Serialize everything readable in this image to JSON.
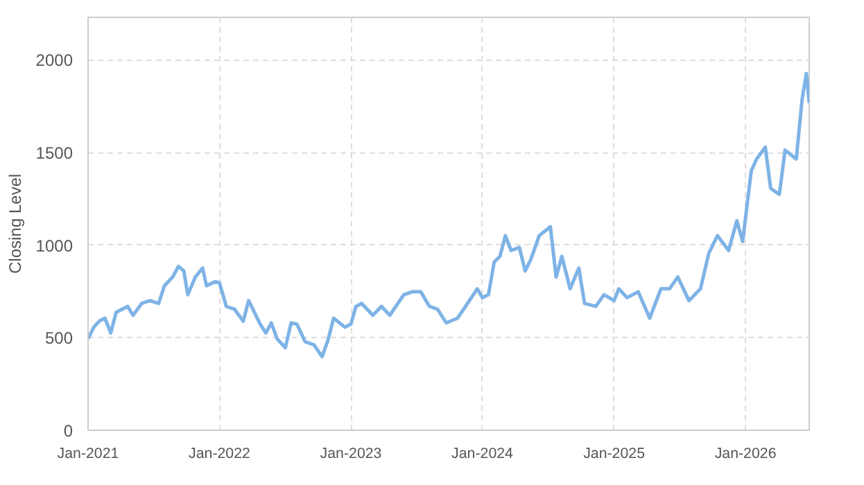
{
  "chart_data": {
    "type": "line",
    "ylabel": "Closing Level",
    "x": [
      "2021-01-01",
      "2021-01-17",
      "2021-02-01",
      "2021-02-17",
      "2021-03-05",
      "2021-03-20",
      "2021-04-21",
      "2021-05-06",
      "2021-05-30",
      "2021-06-22",
      "2021-07-16",
      "2021-08-01",
      "2021-08-24",
      "2021-09-09",
      "2021-09-24",
      "2021-10-05",
      "2021-10-26",
      "2021-11-15",
      "2021-11-26",
      "2021-12-20",
      "2022-01-01",
      "2022-01-20",
      "2022-02-12",
      "2022-03-08",
      "2022-03-23",
      "2022-04-08",
      "2022-04-24",
      "2022-05-10",
      "2022-05-25",
      "2022-06-10",
      "2022-07-03",
      "2022-07-19",
      "2022-08-04",
      "2022-08-27",
      "2022-09-20",
      "2022-10-13",
      "2022-10-29",
      "2022-11-14",
      "2022-12-15",
      "2023-01-01",
      "2023-01-15",
      "2023-01-31",
      "2023-03-03",
      "2023-03-27",
      "2023-04-19",
      "2023-05-28",
      "2023-06-21",
      "2023-07-14",
      "2023-08-07",
      "2023-08-30",
      "2023-09-23",
      "2023-10-24",
      "2023-11-24",
      "2023-12-18",
      "2024-01-01",
      "2024-01-18",
      "2024-02-03",
      "2024-02-19",
      "2024-03-05",
      "2024-03-21",
      "2024-04-13",
      "2024-04-29",
      "2024-05-15",
      "2024-06-07",
      "2024-07-08",
      "2024-07-24",
      "2024-08-09",
      "2024-09-01",
      "2024-09-25",
      "2024-10-11",
      "2024-11-11",
      "2024-12-04",
      "2025-01-01",
      "2025-01-14",
      "2025-02-06",
      "2025-03-09",
      "2025-04-10",
      "2025-05-11",
      "2025-06-04",
      "2025-06-27",
      "2025-07-28",
      "2025-08-29",
      "2025-09-21",
      "2025-10-15",
      "2025-11-15",
      "2025-12-08",
      "2025-12-24",
      "2026-01-17",
      "2026-02-01",
      "2026-02-25",
      "2026-03-12",
      "2026-04-05",
      "2026-04-21",
      "2026-05-22",
      "2026-06-07",
      "2026-06-19",
      "2026-06-27"
    ],
    "series": [
      {
        "color": "#7eb3e6",
        "values": [
          494,
          557,
          589,
          605,
          525,
          637,
          669,
          621,
          685,
          700,
          685,
          780,
          828,
          885,
          860,
          732,
          828,
          876,
          780,
          803,
          796,
          669,
          653,
          589,
          700,
          637,
          573,
          525,
          580,
          494,
          446,
          580,
          573,
          478,
          462,
          398,
          484,
          605,
          557,
          573,
          669,
          685,
          621,
          669,
          621,
          732,
          748,
          748,
          669,
          653,
          580,
          605,
          694,
          764,
          716,
          732,
          908,
          939,
          1051,
          971,
          987,
          860,
          924,
          1051,
          1099,
          828,
          939,
          764,
          876,
          685,
          669,
          732,
          700,
          764,
          716,
          748,
          605,
          764,
          764,
          828,
          700,
          764,
          955,
          1051,
          971,
          1131,
          1019,
          1401,
          1465,
          1529,
          1306,
          1274,
          1513,
          1465,
          1783,
          1927,
          1768
        ]
      }
    ],
    "xlim": [
      "2021-01-01",
      "2026-06-27"
    ],
    "xticks": [
      {
        "value": "2021-01-01",
        "label": "Jan-2021"
      },
      {
        "value": "2022-01-01",
        "label": "Jan-2022"
      },
      {
        "value": "2023-01-01",
        "label": "Jan-2023"
      },
      {
        "value": "2024-01-01",
        "label": "Jan-2024"
      },
      {
        "value": "2025-01-01",
        "label": "Jan-2025"
      },
      {
        "value": "2026-01-01",
        "label": "Jan-2026"
      }
    ],
    "ylim": [
      0,
      2230
    ],
    "yticks": [
      0,
      500,
      1000,
      1500,
      2000
    ],
    "grid": true,
    "marker": "none",
    "line_style": "solid"
  }
}
